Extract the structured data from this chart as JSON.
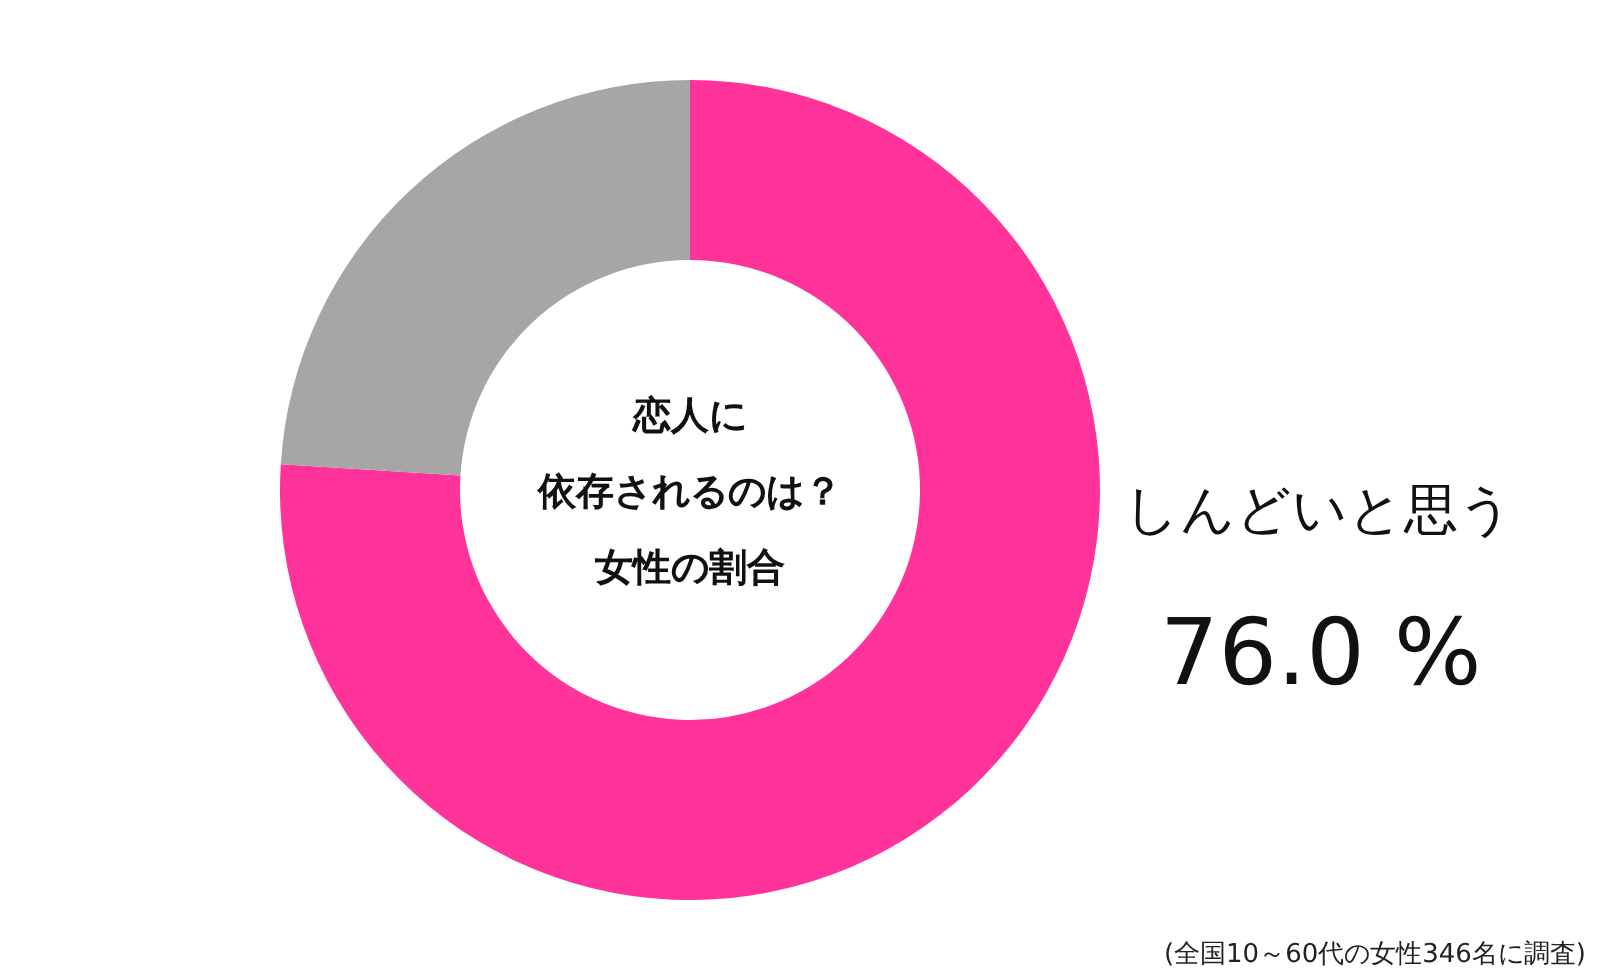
{
  "chart_data": {
    "type": "donut",
    "title": "恋人に依存されるのは？",
    "subtitle": "女性の割合",
    "categories": [
      "しんどいと思う",
      null
    ],
    "values": [
      76.0,
      24.0
    ],
    "colors": [
      "#ff3399",
      "#a6a6a6"
    ],
    "value_labels": [
      "76.0 %",
      null
    ],
    "annotations": [
      "(全国10～60代の女性346名に調査)"
    ]
  }
}
